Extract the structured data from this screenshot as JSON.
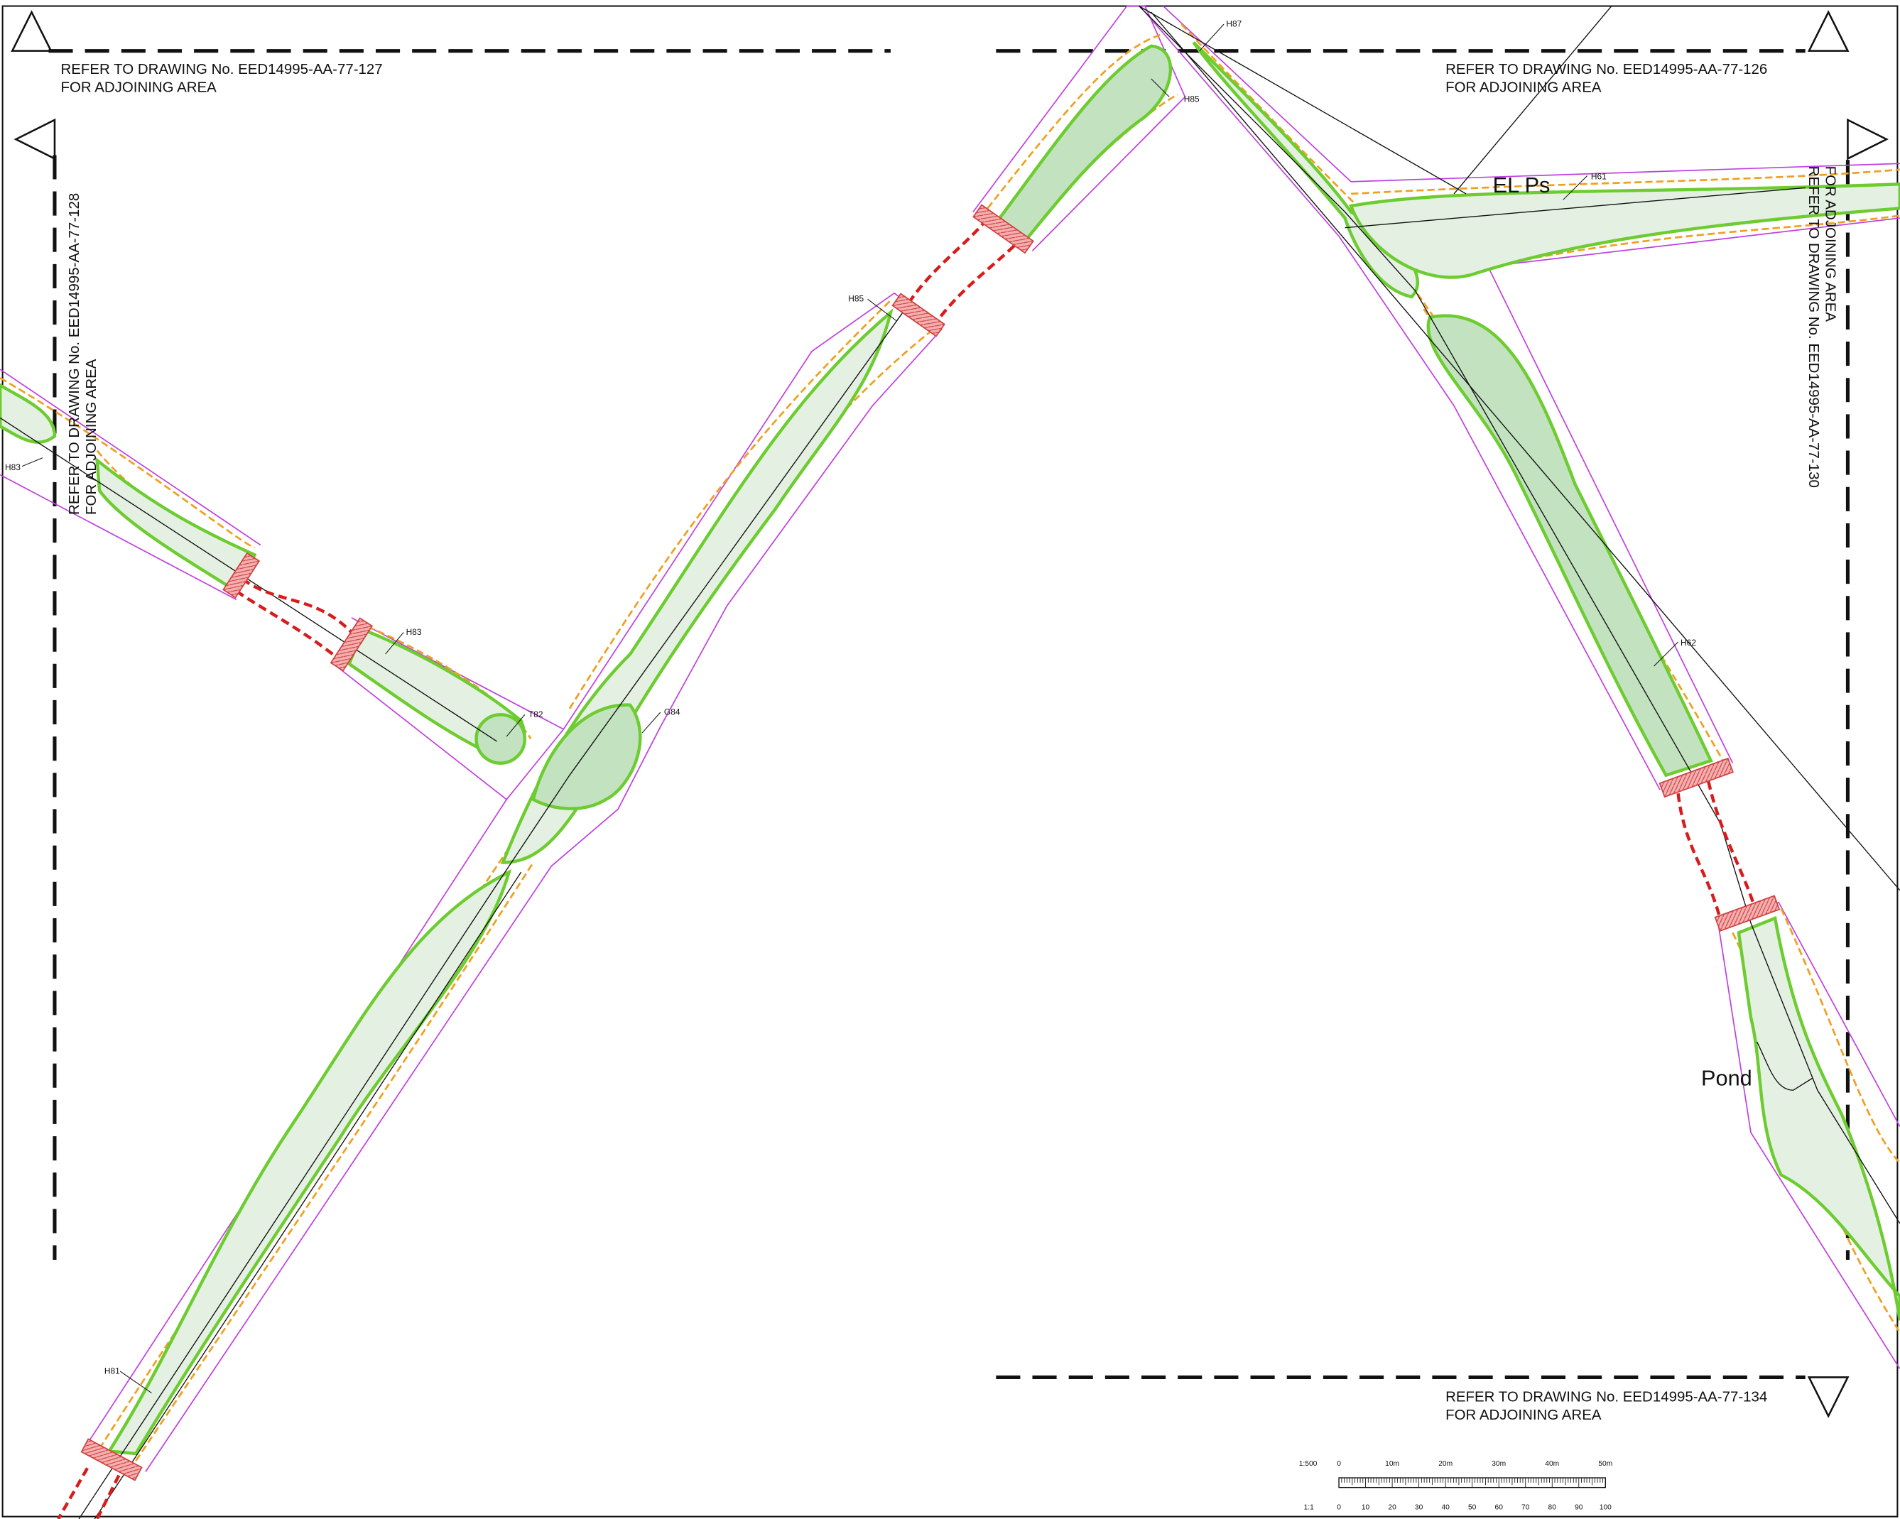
{
  "notes": {
    "top_left": [
      "REFER TO DRAWING No. EED14995-AA-77-127",
      "FOR ADJOINING AREA"
    ],
    "top_right": [
      "REFER TO DRAWING No. EED14995-AA-77-126",
      "FOR ADJOINING AREA"
    ],
    "left": [
      "REFER TO DRAWING No. EED14995-AA-77-128",
      "FOR ADJOINING AREA"
    ],
    "right": [
      "REFER TO DRAWING No. EED14995-AA-77-130",
      "FOR ADJOINING AREA"
    ],
    "bottom_right": [
      "REFER TO DRAWING No. EED14995-AA-77-134",
      "FOR ADJOINING AREA"
    ]
  },
  "labels": {
    "h83_west": "H83",
    "h83": "H83",
    "t82": "T82",
    "g84": "G84",
    "h85_lower": "H85",
    "h85_upper": "H85",
    "h87": "H87",
    "h61": "H61",
    "el": "EL Ps",
    "h62": "H62",
    "pond": "Pond",
    "h81": "H81"
  },
  "scale_bar": {
    "ratio": "1:500",
    "top_ticks": [
      "0",
      "10m",
      "20m",
      "30m",
      "40m",
      "50m"
    ],
    "ratio_2": "1:1",
    "bottom_ticks": [
      0,
      10,
      20,
      30,
      40,
      50,
      60,
      70,
      80,
      90,
      100
    ]
  }
}
